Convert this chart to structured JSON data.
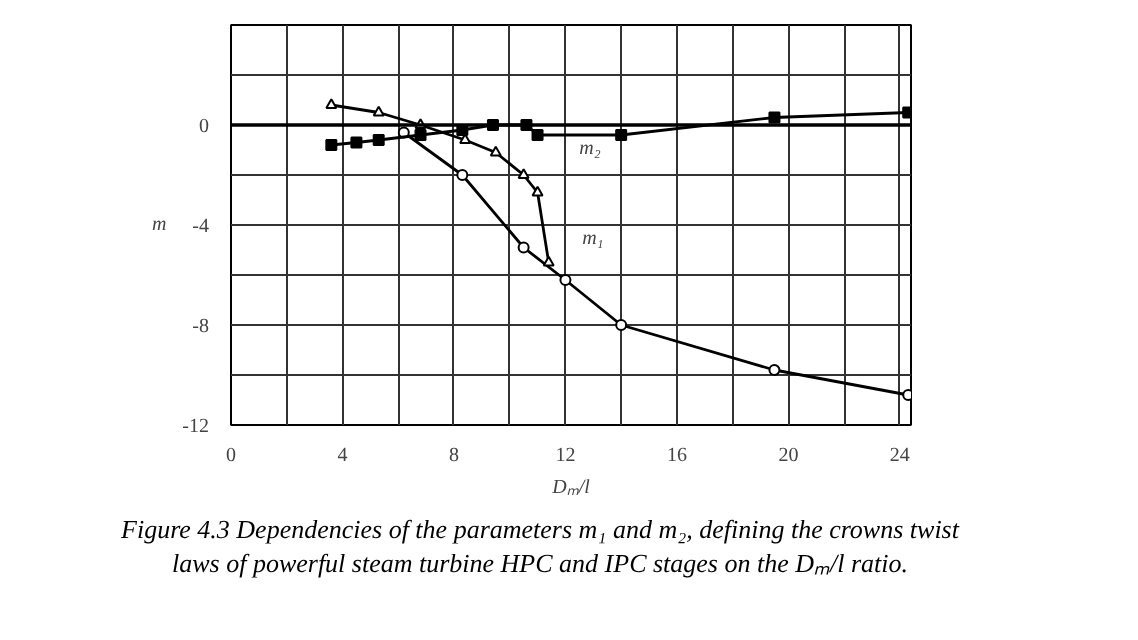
{
  "chart_data": {
    "type": "line",
    "title": "Figure 4.3 Dependencies of the parameters m₁ and m₂, defining the crowns twist laws of powerful steam turbine HPC and IPC stages on the Dₘ/l ratio.",
    "xlabel": "Dₘ/l",
    "ylabel": "m",
    "xlim": [
      0,
      24.4
    ],
    "ylim": [
      -12,
      4
    ],
    "xticks": [
      0,
      {
        "value": 2,
        "label": null
      },
      4,
      {
        "value": 6,
        "label": null
      },
      8,
      {
        "value": 10,
        "label": null
      },
      12,
      {
        "value": 14,
        "label": null
      },
      16,
      {
        "value": 18,
        "label": null
      },
      20,
      {
        "value": 22,
        "label": null
      },
      24
    ],
    "yticks": [
      -12,
      {
        "value": -10,
        "label": null
      },
      -8,
      {
        "value": -6,
        "label": null
      },
      -4,
      {
        "value": -2,
        "label": null
      },
      0,
      {
        "value": 2,
        "label": null
      },
      {
        "value": 4,
        "label": null
      }
    ],
    "grid": true,
    "line_style": "solid",
    "ref_lines": [
      {
        "axis": "y",
        "value": 0,
        "label": null,
        "color": "#000000"
      }
    ],
    "series": [
      {
        "color": "#000000",
        "marker": "circle",
        "x": [
          6.2,
          8.3,
          10.5,
          12,
          14,
          19.5,
          24.3
        ],
        "values": [
          -0.3,
          -2,
          -4.9,
          -6.2,
          -8,
          -9.8,
          -10.8
        ]
      },
      {
        "color": "#000000",
        "marker": "triangle",
        "x": [
          3.6,
          5.3,
          6.8,
          8.4,
          9.5,
          10.5,
          11,
          11.4
        ],
        "values": [
          0.8,
          0.5,
          0,
          -0.6,
          -1.1,
          -2,
          -2.7,
          -5.5
        ]
      },
      {
        "color": "#000000",
        "marker": "square",
        "x": [
          3.6,
          4.5,
          5.3,
          6.8,
          8.3,
          9.4,
          10.6,
          11,
          14,
          19.5,
          24.3
        ],
        "values": [
          -0.8,
          -0.7,
          -0.6,
          -0.4,
          -0.2,
          0,
          0,
          -0.4,
          -0.4,
          0.3,
          0.5
        ]
      }
    ],
    "annotations": [
      "m₂",
      "m₁"
    ]
  }
}
